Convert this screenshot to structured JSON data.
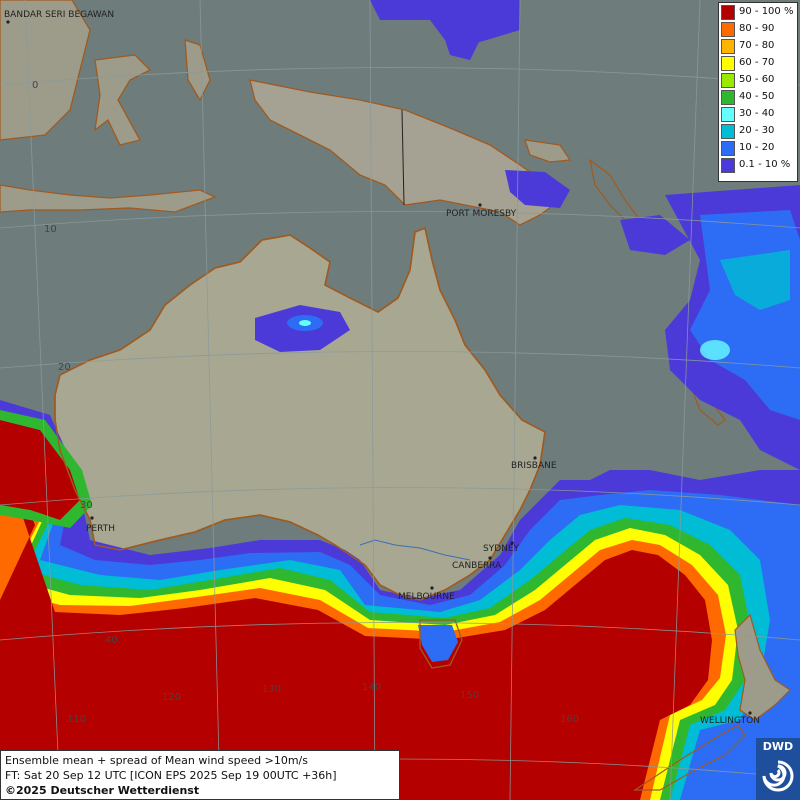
{
  "legend": {
    "items": [
      {
        "label": "90 - 100 %",
        "color": "#b50000"
      },
      {
        "label": "80 - 90",
        "color": "#ff6a00"
      },
      {
        "label": "70 - 80",
        "color": "#ffb400"
      },
      {
        "label": "60 - 70",
        "color": "#ffff00"
      },
      {
        "label": "50 - 60",
        "color": "#9be800"
      },
      {
        "label": "40 - 50",
        "color": "#2fb82f"
      },
      {
        "label": "30 - 40",
        "color": "#66ffff"
      },
      {
        "label": "20 - 30",
        "color": "#00bcd4"
      },
      {
        "label": "10 - 20",
        "color": "#2d6cf5"
      },
      {
        "label": "0.1 - 10 %",
        "color": "#4b3ad8"
      }
    ]
  },
  "cities": {
    "bandar": "BANDAR SERI BEGAWAN",
    "port_moresby": "PORT MORESBY",
    "brisbane": "BRISBANE",
    "perth": "PERTH",
    "sydney": "SYDNEY",
    "canberra": "CANBERRA",
    "melbourne": "MELBOURNE",
    "wellington": "WELLINGTON"
  },
  "gridlabels": {
    "lat0": "0",
    "lat10": "10",
    "lat20": "20",
    "lat30": "30",
    "lat40": "40",
    "lon110": "110",
    "lon120": "120",
    "lon130": "130",
    "lon140": "140",
    "lon150": "150",
    "lon160": "160"
  },
  "info": {
    "line1": "Ensemble mean + spread of Mean wind speed >10m/s",
    "line2": "FT: Sat 20 Sep 12 UTC [ICON EPS 2025 Sep 19 00UTC +36h]",
    "line3": "©2025 Deutscher Wetterdienst"
  },
  "logo": {
    "text": "DWD",
    "icon": "dwd-swirl-icon"
  }
}
